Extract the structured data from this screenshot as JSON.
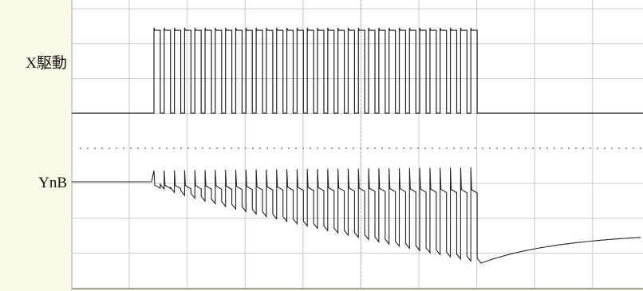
{
  "labels": {
    "x_drive": "X駆動",
    "ynb": "YnB"
  }
}
